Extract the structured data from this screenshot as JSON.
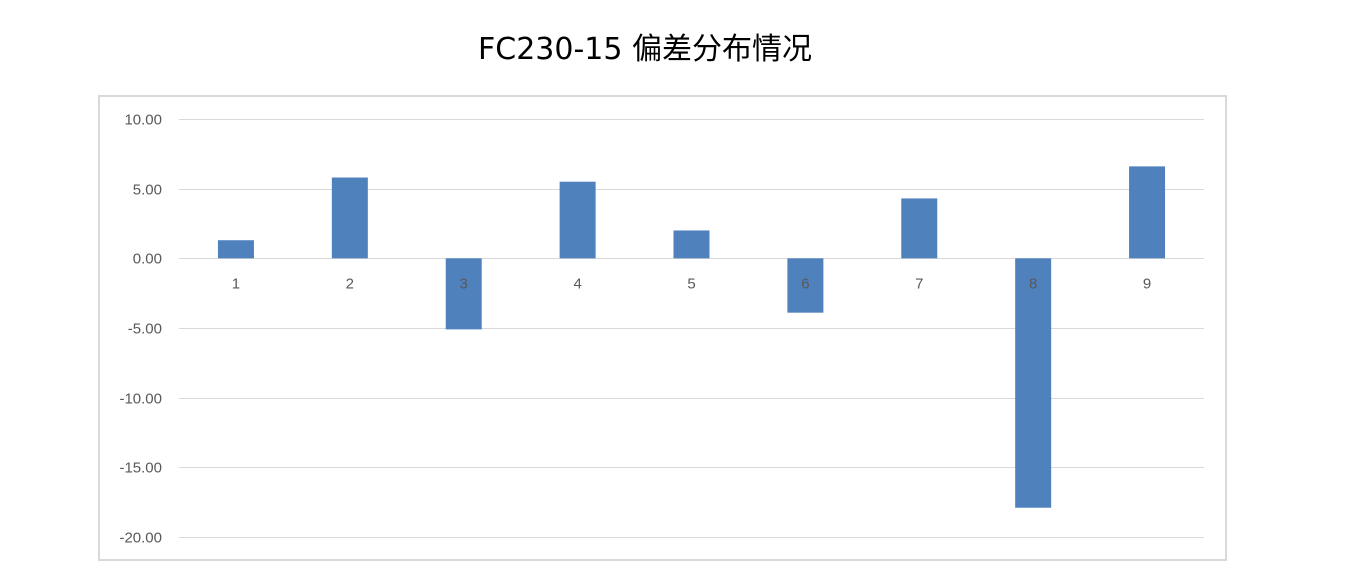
{
  "chart_data": {
    "type": "bar",
    "title": "FC230-15 偏差分布情况",
    "xlabel": "",
    "ylabel": "",
    "categories": [
      "1",
      "2",
      "3",
      "4",
      "5",
      "6",
      "7",
      "8",
      "9"
    ],
    "values": [
      1.3,
      5.8,
      -5.1,
      5.5,
      2.0,
      -3.9,
      4.3,
      -17.9,
      6.6
    ],
    "ylim": [
      -20,
      10
    ],
    "yticks": [
      "10.00",
      "5.00",
      "0.00",
      "-5.00",
      "-10.00",
      "-15.00",
      "-20.00"
    ],
    "grid": true,
    "legend": "none",
    "bar_color": "#4f81bd",
    "grid_color": "#d9d9d9"
  }
}
